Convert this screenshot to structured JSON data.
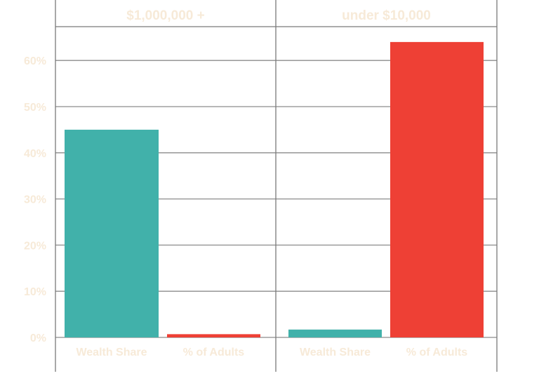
{
  "chart_data": {
    "type": "bar",
    "ylim": [
      0,
      0.67
    ],
    "y_ticks": [
      0,
      0.1,
      0.2,
      0.3,
      0.4,
      0.5,
      0.6
    ],
    "y_tick_labels": [
      "0%",
      "10%",
      "20%",
      "30%",
      "40%",
      "50%",
      "60%"
    ],
    "grid": true,
    "panels": [
      {
        "title": "$1,000,000 +",
        "categories": [
          "Wealth Share",
          "% of Adults"
        ],
        "values": [
          0.45,
          0.007
        ]
      },
      {
        "title": "under $10,000",
        "categories": [
          "Wealth Share",
          "% of Adults"
        ],
        "values": [
          0.017,
          0.64
        ]
      }
    ],
    "colors": {
      "Wealth Share": "#41b1aa",
      "% of Adults": "#ee4035"
    }
  }
}
